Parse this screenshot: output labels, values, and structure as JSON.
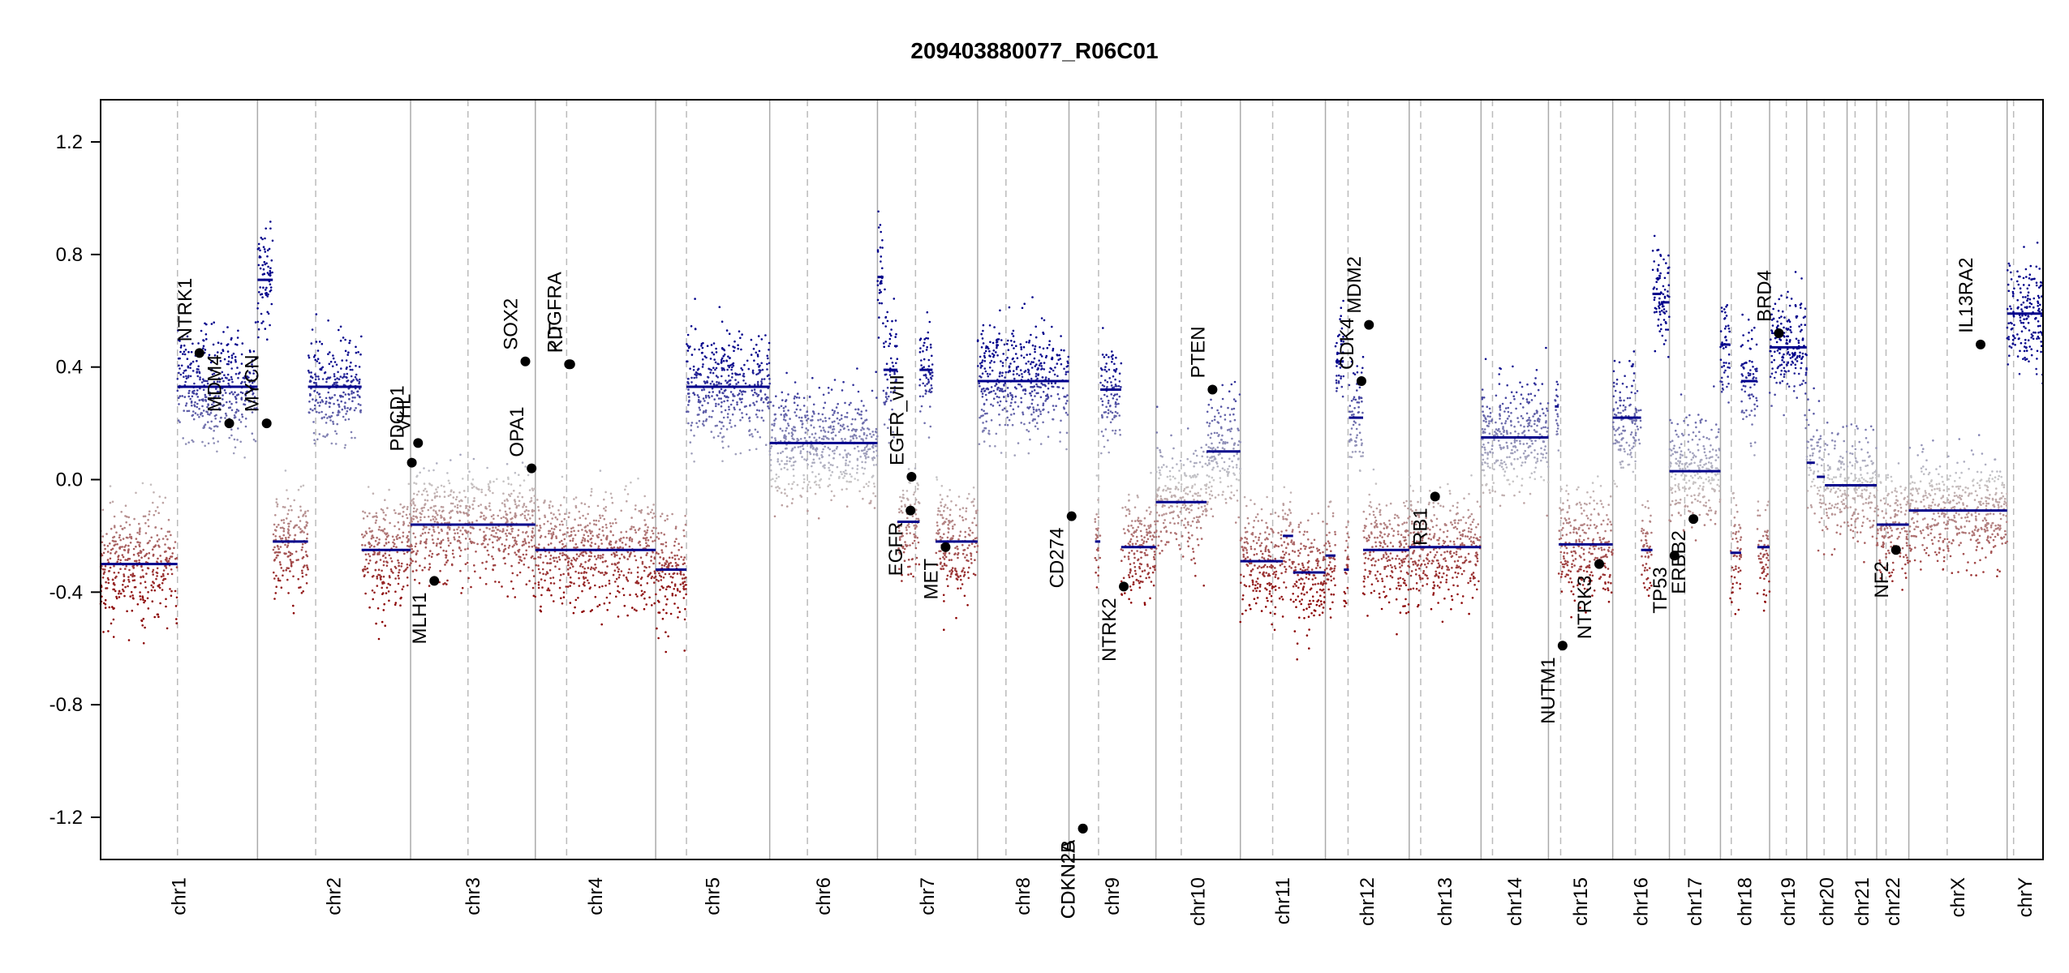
{
  "chart_data": {
    "type": "scatter",
    "title": "209403880077_R06C01",
    "xlabel": "",
    "ylabel": "",
    "ylim": [
      -1.35,
      1.35
    ],
    "y_ticks": [
      -1.2,
      -0.8,
      -0.4,
      0.0,
      0.4,
      0.8,
      1.2
    ],
    "y_tick_labels": [
      "-1.2",
      "-0.8",
      "-0.4",
      "0.0",
      "0.4",
      "0.8",
      "1.2"
    ],
    "colors": {
      "gain": "#00008b",
      "loss": "#8b0000",
      "neutral": "#c8c8c8",
      "segment": "#00008b",
      "gene_point": "#000000",
      "chrom_boundary": "#aaaaaa",
      "centromere": "#bbbbbb"
    },
    "grid": false,
    "chromosomes": [
      {
        "name": "chr1",
        "length": 249,
        "centromere": 0.49
      },
      {
        "name": "chr2",
        "length": 243,
        "centromere": 0.38
      },
      {
        "name": "chr3",
        "length": 198,
        "centromere": 0.46
      },
      {
        "name": "chr4",
        "length": 191,
        "centromere": 0.26
      },
      {
        "name": "chr5",
        "length": 181,
        "centromere": 0.27
      },
      {
        "name": "chr6",
        "length": 171,
        "centromere": 0.35
      },
      {
        "name": "chr7",
        "length": 159,
        "centromere": 0.38
      },
      {
        "name": "chr8",
        "length": 145,
        "centromere": 0.31
      },
      {
        "name": "chr9",
        "length": 138,
        "centromere": 0.34
      },
      {
        "name": "chr10",
        "length": 134,
        "centromere": 0.3
      },
      {
        "name": "chr11",
        "length": 135,
        "centromere": 0.38
      },
      {
        "name": "chr12",
        "length": 133,
        "centromere": 0.27
      },
      {
        "name": "chr13",
        "length": 114,
        "centromere": 0.16
      },
      {
        "name": "chr14",
        "length": 107,
        "centromere": 0.17
      },
      {
        "name": "chr15",
        "length": 102,
        "centromere": 0.19
      },
      {
        "name": "chr16",
        "length": 90,
        "centromere": 0.4
      },
      {
        "name": "chr17",
        "length": 81,
        "centromere": 0.3
      },
      {
        "name": "chr18",
        "length": 78,
        "centromere": 0.22
      },
      {
        "name": "chr19",
        "length": 59,
        "centromere": 0.45
      },
      {
        "name": "chr20",
        "length": 64,
        "centromere": 0.43
      },
      {
        "name": "chr21",
        "length": 47,
        "centromere": 0.27
      },
      {
        "name": "chr22",
        "length": 51,
        "centromere": 0.29
      },
      {
        "name": "chrX",
        "length": 156,
        "centromere": 0.39
      },
      {
        "name": "chrY",
        "length": 57,
        "centromere": 0.18
      }
    ],
    "segments": [
      {
        "chr": "chr1",
        "start": 0.0,
        "end": 0.49,
        "value": -0.3
      },
      {
        "chr": "chr1",
        "start": 0.49,
        "end": 1.0,
        "value": 0.33
      },
      {
        "chr": "chr2",
        "start": 0.0,
        "end": 0.1,
        "value": 0.71
      },
      {
        "chr": "chr2",
        "start": 0.1,
        "end": 0.33,
        "value": -0.22
      },
      {
        "chr": "chr2",
        "start": 0.33,
        "end": 0.68,
        "value": 0.33
      },
      {
        "chr": "chr2",
        "start": 0.68,
        "end": 1.0,
        "value": -0.25
      },
      {
        "chr": "chr3",
        "start": 0.0,
        "end": 1.0,
        "value": -0.16
      },
      {
        "chr": "chr4",
        "start": 0.0,
        "end": 1.0,
        "value": -0.25
      },
      {
        "chr": "chr5",
        "start": 0.0,
        "end": 0.27,
        "value": -0.32
      },
      {
        "chr": "chr5",
        "start": 0.27,
        "end": 1.0,
        "value": 0.33
      },
      {
        "chr": "chr6",
        "start": 0.0,
        "end": 1.0,
        "value": 0.13
      },
      {
        "chr": "chr7",
        "start": 0.0,
        "end": 0.06,
        "value": 0.72
      },
      {
        "chr": "chr7",
        "start": 0.06,
        "end": 0.2,
        "value": 0.39
      },
      {
        "chr": "chr7",
        "start": 0.2,
        "end": 0.42,
        "value": -0.15
      },
      {
        "chr": "chr7",
        "start": 0.42,
        "end": 0.55,
        "value": 0.39
      },
      {
        "chr": "chr7",
        "start": 0.58,
        "end": 1.0,
        "value": -0.22
      },
      {
        "chr": "chr8",
        "start": 0.0,
        "end": 1.0,
        "value": 0.35
      },
      {
        "chr": "chr9",
        "start": 0.3,
        "end": 0.36,
        "value": -0.22
      },
      {
        "chr": "chr9",
        "start": 0.36,
        "end": 0.6,
        "value": 0.32
      },
      {
        "chr": "chr9",
        "start": 0.6,
        "end": 1.0,
        "value": -0.24
      },
      {
        "chr": "chr10",
        "start": 0.0,
        "end": 0.6,
        "value": -0.08
      },
      {
        "chr": "chr10",
        "start": 0.6,
        "end": 1.0,
        "value": 0.1
      },
      {
        "chr": "chr11",
        "start": 0.0,
        "end": 0.5,
        "value": -0.29
      },
      {
        "chr": "chr11",
        "start": 0.5,
        "end": 0.62,
        "value": -0.2
      },
      {
        "chr": "chr11",
        "start": 0.62,
        "end": 1.0,
        "value": -0.33
      },
      {
        "chr": "chr12",
        "start": 0.0,
        "end": 0.12,
        "value": -0.27
      },
      {
        "chr": "chr12",
        "start": 0.12,
        "end": 0.22,
        "value": 0.42
      },
      {
        "chr": "chr12",
        "start": 0.22,
        "end": 0.28,
        "value": -0.32
      },
      {
        "chr": "chr12",
        "start": 0.28,
        "end": 0.45,
        "value": 0.22
      },
      {
        "chr": "chr12",
        "start": 0.45,
        "end": 1.0,
        "value": -0.25
      },
      {
        "chr": "chr13",
        "start": 0.0,
        "end": 1.0,
        "value": -0.24
      },
      {
        "chr": "chr14",
        "start": 0.0,
        "end": 1.0,
        "value": 0.15
      },
      {
        "chr": "chr15",
        "start": 0.1,
        "end": 0.16,
        "value": 0.26
      },
      {
        "chr": "chr15",
        "start": 0.16,
        "end": 1.0,
        "value": -0.23
      },
      {
        "chr": "chr16",
        "start": 0.0,
        "end": 0.5,
        "value": 0.22
      },
      {
        "chr": "chr16",
        "start": 0.5,
        "end": 0.7,
        "value": -0.25
      },
      {
        "chr": "chr16",
        "start": 0.7,
        "end": 0.85,
        "value": 0.66
      },
      {
        "chr": "chr16",
        "start": 0.85,
        "end": 1.0,
        "value": 0.63
      },
      {
        "chr": "chr17",
        "start": 0.0,
        "end": 1.0,
        "value": 0.03
      },
      {
        "chr": "chr18",
        "start": 0.0,
        "end": 0.2,
        "value": 0.48
      },
      {
        "chr": "chr18",
        "start": 0.2,
        "end": 0.42,
        "value": -0.26
      },
      {
        "chr": "chr18",
        "start": 0.42,
        "end": 0.75,
        "value": 0.35
      },
      {
        "chr": "chr18",
        "start": 0.75,
        "end": 1.0,
        "value": -0.24
      },
      {
        "chr": "chr19",
        "start": 0.0,
        "end": 1.0,
        "value": 0.47
      },
      {
        "chr": "chr20",
        "start": 0.0,
        "end": 0.2,
        "value": 0.06
      },
      {
        "chr": "chr20",
        "start": 0.25,
        "end": 0.45,
        "value": 0.01
      },
      {
        "chr": "chr20",
        "start": 0.45,
        "end": 1.0,
        "value": -0.02
      },
      {
        "chr": "chr21",
        "start": 0.0,
        "end": 1.0,
        "value": -0.02
      },
      {
        "chr": "chr22",
        "start": 0.0,
        "end": 1.0,
        "value": -0.16
      },
      {
        "chr": "chrX",
        "start": 0.0,
        "end": 1.0,
        "value": -0.11
      },
      {
        "chr": "chrY",
        "start": 0.0,
        "end": 1.0,
        "value": 0.59
      }
    ],
    "genes": [
      {
        "name": "NTRK1",
        "chr": "chr1",
        "pos": 0.63,
        "value": 0.45
      },
      {
        "name": "MDM4",
        "chr": "chr1",
        "pos": 0.82,
        "value": 0.2
      },
      {
        "name": "MYCN",
        "chr": "chr2",
        "pos": 0.06,
        "value": 0.2
      },
      {
        "name": "PDCD1",
        "chr": "chr3",
        "pos": 0.01,
        "value": 0.06
      },
      {
        "name": "VHL",
        "chr": "chr3",
        "pos": 0.06,
        "value": 0.13
      },
      {
        "name": "MLH1",
        "chr": "chr3",
        "pos": 0.19,
        "value": -0.36
      },
      {
        "name": "SOX2",
        "chr": "chr3",
        "pos": 0.92,
        "value": 0.42
      },
      {
        "name": "OPA1",
        "chr": "chr3",
        "pos": 0.97,
        "value": 0.04
      },
      {
        "name": "PDGFRA",
        "chr": "chr4",
        "pos": 0.28,
        "value": 0.41
      },
      {
        "name": "KIT",
        "chr": "chr4",
        "pos": 0.29,
        "value": 0.41
      },
      {
        "name": "EGFR_vIII",
        "chr": "chr7",
        "pos": 0.34,
        "value": 0.01
      },
      {
        "name": "EGFR",
        "chr": "chr7",
        "pos": 0.33,
        "value": -0.11
      },
      {
        "name": "MET",
        "chr": "chr7",
        "pos": 0.68,
        "value": -0.24
      },
      {
        "name": "CD274",
        "chr": "chr9",
        "pos": 0.03,
        "value": -0.13
      },
      {
        "name": "CDKN2A",
        "chr": "chr9",
        "pos": 0.16,
        "value": -1.24
      },
      {
        "name": "CDKN2B",
        "chr": "chr9",
        "pos": 0.16,
        "value": -1.24
      },
      {
        "name": "NTRK2",
        "chr": "chr9",
        "pos": 0.63,
        "value": -0.38
      },
      {
        "name": "PTEN",
        "chr": "chr10",
        "pos": 0.67,
        "value": 0.32
      },
      {
        "name": "CDK4",
        "chr": "chr12",
        "pos": 0.43,
        "value": 0.35
      },
      {
        "name": "MDM2",
        "chr": "chr12",
        "pos": 0.52,
        "value": 0.55
      },
      {
        "name": "RB1",
        "chr": "chr13",
        "pos": 0.36,
        "value": -0.06
      },
      {
        "name": "NUTM1",
        "chr": "chr15",
        "pos": 0.22,
        "value": -0.59
      },
      {
        "name": "NTRK3",
        "chr": "chr15",
        "pos": 0.79,
        "value": -0.3
      },
      {
        "name": "TP53",
        "chr": "chr17",
        "pos": 0.1,
        "value": -0.27
      },
      {
        "name": "ERBB2",
        "chr": "chr17",
        "pos": 0.47,
        "value": -0.14
      },
      {
        "name": "BRD4",
        "chr": "chr19",
        "pos": 0.25,
        "value": 0.52
      },
      {
        "name": "NF2",
        "chr": "chr22",
        "pos": 0.6,
        "value": -0.25
      },
      {
        "name": "IL13RA2",
        "chr": "chrX",
        "pos": 0.73,
        "value": 0.48
      }
    ]
  }
}
